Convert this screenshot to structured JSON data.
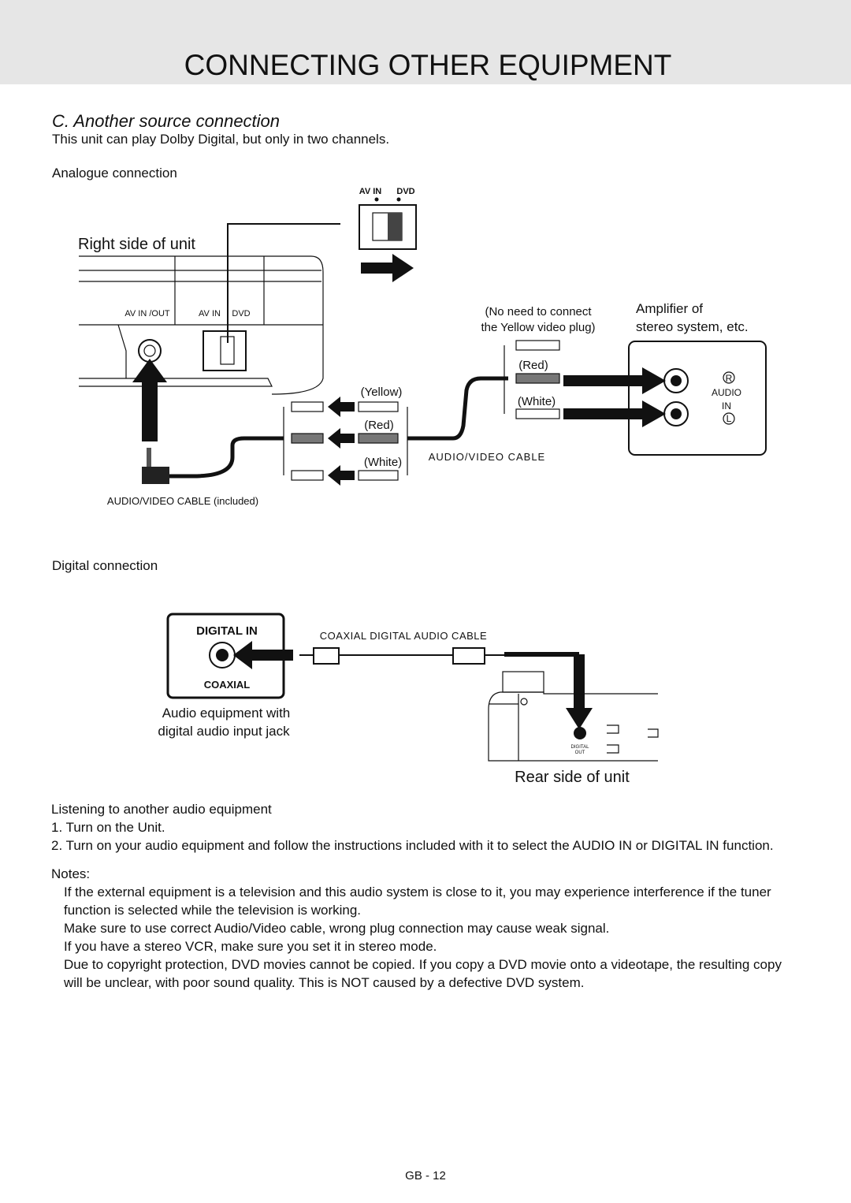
{
  "header": {
    "title": "CONNECTING OTHER EQUIPMENT"
  },
  "section": {
    "title": "C.  Another source connection",
    "intro": "This unit can play Dolby Digital, but only in two channels."
  },
  "analogue": {
    "heading": "Analogue connection",
    "switch_left": "AV IN",
    "switch_right": "DVD",
    "unit_label": "Right side of unit",
    "port_avinout": "AV IN /OUT",
    "port_avin": "AV IN",
    "port_dvd": "DVD",
    "note_line1": "(No need to connect",
    "note_line2": "the Yellow video plug)",
    "amp_line1": "Amplifier of",
    "amp_line2": "stereo system, etc.",
    "right_red": "(Red)",
    "right_white": "(White)",
    "amp_r": "R",
    "amp_audio": "AUDIO",
    "amp_in": "IN",
    "amp_l": "L",
    "left_yellow": "(Yellow)",
    "left_red": "(Red)",
    "left_white": "(White)",
    "cable": "AUDIO/VIDEO  CABLE",
    "included_cable": "AUDIO/VIDEO CABLE (included)"
  },
  "digital": {
    "heading": "Digital connection",
    "box_title": "DIGITAL IN",
    "box_sub": "COAXIAL",
    "cable": "COAXIAL  DIGITAL  AUDIO  CABLE",
    "equip_line1": "Audio equipment with",
    "equip_line2": "digital audio input jack",
    "port_line1": "DIGITAL",
    "port_line2": "OUT",
    "unit_label": "Rear side of unit"
  },
  "steps": {
    "heading": "Listening to another audio equipment",
    "items": [
      "1. Turn on the Unit.",
      "2. Turn on your audio equipment and follow the instructions included with it to select the AUDIO IN or DIGITAL IN function."
    ]
  },
  "notes": {
    "heading": "Notes:",
    "items": [
      "If the external equipment is a television and this audio system is close to it, you may experience interference if the tuner function is selected while the television is working.",
      "Make sure to use correct Audio/Video cable, wrong plug connection may cause weak signal.",
      "If you have a stereo VCR, make sure you set it in stereo mode.",
      "Due to copyright protection, DVD movies cannot be copied. If you copy a DVD movie onto a videotape, the resulting copy will be unclear, with poor sound quality. This is NOT caused by a defective DVD system."
    ]
  },
  "footer": {
    "page": "GB - 12"
  }
}
